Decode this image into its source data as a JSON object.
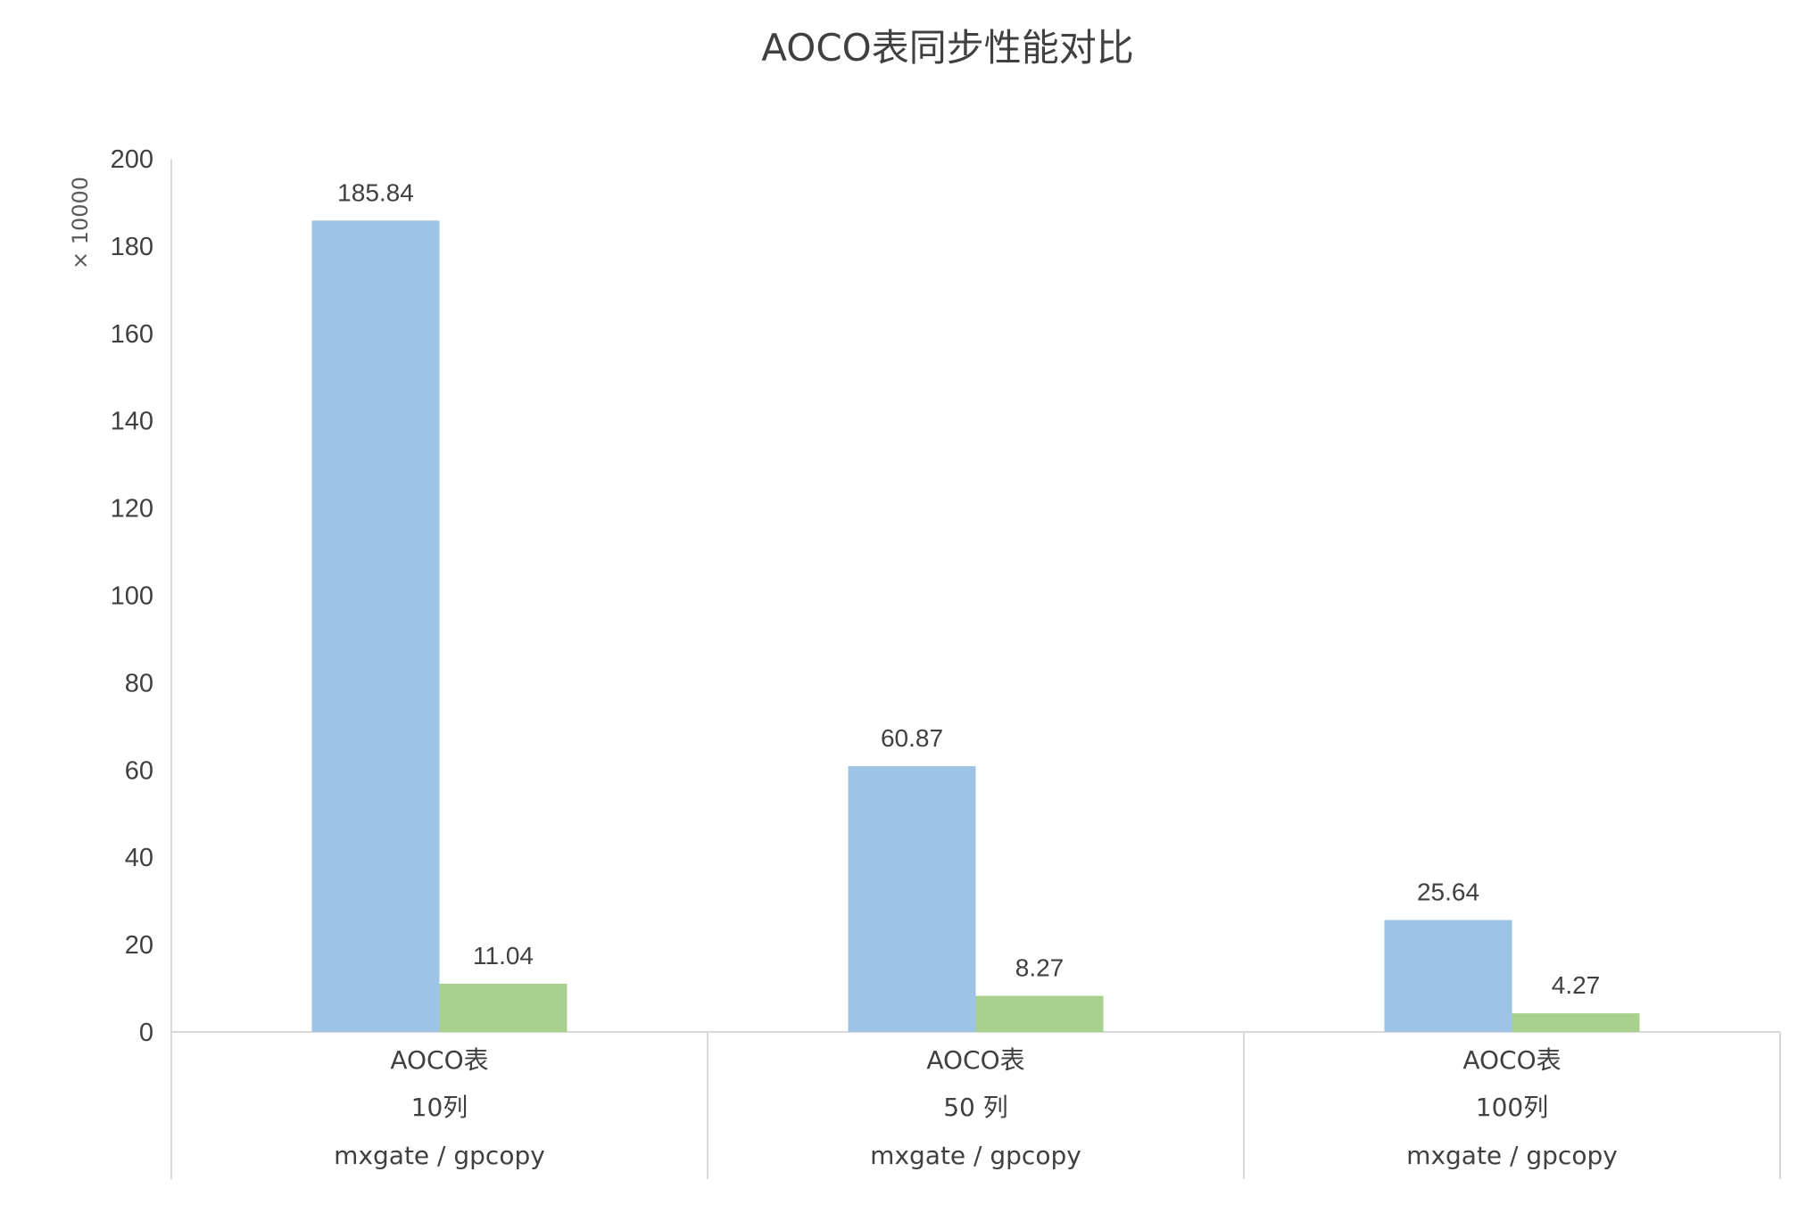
{
  "chart_data": {
    "type": "bar",
    "title": "AOCO表同步性能对比",
    "ylabel": "",
    "y_unit": "× 10000",
    "ylim": [
      0,
      200
    ],
    "y_ticks": [
      "0",
      "20",
      "40",
      "60",
      "80",
      "100",
      "120",
      "140",
      "160",
      "180",
      "200"
    ],
    "grid": false,
    "legend": "none",
    "categories": [
      [
        "AOCO表",
        "10列",
        "mxgate / gpcopy"
      ],
      [
        "AOCO表",
        "50 列",
        "mxgate / gpcopy"
      ],
      [
        "AOCO表",
        "100列",
        "mxgate / gpcopy"
      ]
    ],
    "series": [
      {
        "values": [
          185.84,
          60.87,
          25.64
        ],
        "labels": [
          "185.84",
          "60.87",
          "25.64"
        ],
        "color": "#9dc3e6"
      },
      {
        "values": [
          11.04,
          8.27,
          4.27
        ],
        "labels": [
          "11.04",
          "8.27",
          "4.27"
        ],
        "color": "#a9d18e"
      }
    ],
    "axis_color": "#d9d9d9"
  }
}
